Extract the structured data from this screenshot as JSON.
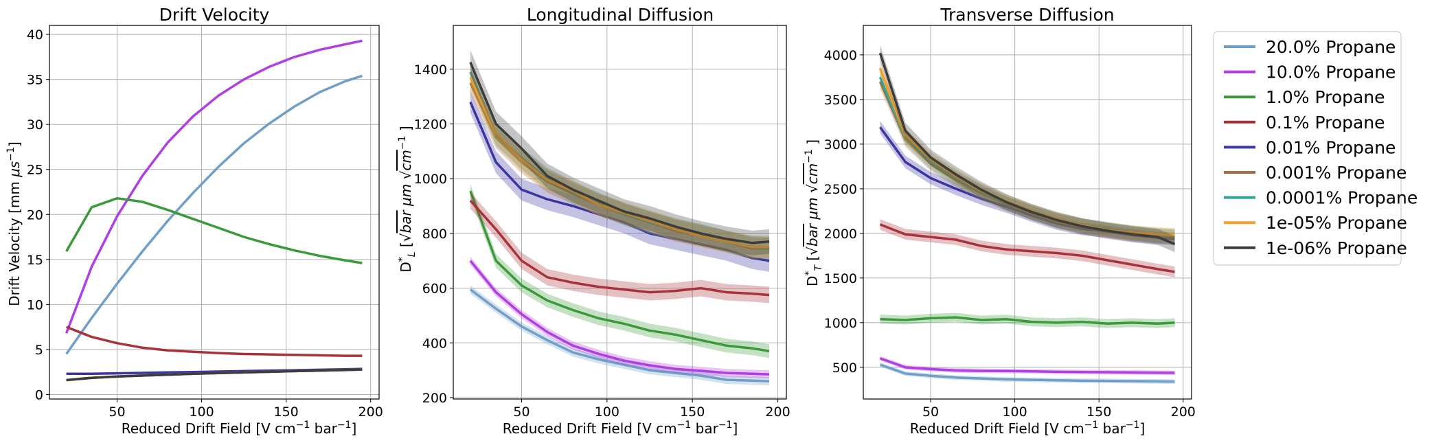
{
  "chart_data": [
    {
      "type": "line",
      "title": "Drift Velocity",
      "xlabel": "Reduced Drift Field [V cm⁻¹ bar⁻¹]",
      "ylabel": "Drift Velocity [mm μs⁻¹]",
      "xlim": [
        10,
        205
      ],
      "ylim": [
        -0.5,
        41
      ],
      "xticks": [
        50,
        100,
        150,
        200
      ],
      "yticks": [
        0,
        5,
        10,
        15,
        20,
        25,
        30,
        35,
        40
      ],
      "grid": true,
      "x": [
        20,
        35,
        50,
        65,
        80,
        95,
        110,
        125,
        140,
        155,
        170,
        185,
        195
      ],
      "series": [
        {
          "name": "20.0% Propane",
          "values": [
            4.5,
            8.5,
            12.3,
            15.9,
            19.3,
            22.4,
            25.3,
            27.9,
            30.1,
            32.0,
            33.6,
            34.8,
            35.4
          ]
        },
        {
          "name": "10.0% Propane",
          "values": [
            6.8,
            14.2,
            19.8,
            24.3,
            28.0,
            30.9,
            33.2,
            35.0,
            36.4,
            37.5,
            38.3,
            38.9,
            39.3
          ]
        },
        {
          "name": "1.0% Propane",
          "values": [
            15.9,
            20.8,
            21.8,
            21.4,
            20.5,
            19.5,
            18.5,
            17.5,
            16.7,
            16.0,
            15.4,
            14.9,
            14.6
          ]
        },
        {
          "name": "0.1% Propane",
          "values": [
            7.5,
            6.4,
            5.7,
            5.2,
            4.9,
            4.75,
            4.6,
            4.5,
            4.45,
            4.4,
            4.35,
            4.3,
            4.3
          ]
        },
        {
          "name": "0.01% Propane",
          "values": [
            2.3,
            2.3,
            2.35,
            2.4,
            2.45,
            2.5,
            2.55,
            2.6,
            2.65,
            2.7,
            2.75,
            2.8,
            2.85
          ]
        },
        {
          "name": "0.001% Propane",
          "values": [
            1.6,
            1.85,
            2.0,
            2.1,
            2.2,
            2.3,
            2.38,
            2.45,
            2.52,
            2.6,
            2.66,
            2.72,
            2.78
          ]
        },
        {
          "name": "0.0001% Propane",
          "values": [
            1.6,
            1.85,
            2.0,
            2.1,
            2.2,
            2.3,
            2.38,
            2.45,
            2.52,
            2.6,
            2.66,
            2.72,
            2.78
          ]
        },
        {
          "name": "1e-05% Propane",
          "values": [
            1.6,
            1.85,
            2.0,
            2.1,
            2.2,
            2.3,
            2.38,
            2.45,
            2.52,
            2.6,
            2.66,
            2.72,
            2.78
          ]
        },
        {
          "name": "1e-06% Propane",
          "values": [
            1.6,
            1.85,
            2.0,
            2.1,
            2.2,
            2.3,
            2.38,
            2.45,
            2.52,
            2.6,
            2.66,
            2.72,
            2.78
          ]
        }
      ]
    },
    {
      "type": "line",
      "title": "Longitudinal Diffusion",
      "xlabel": "Reduced Drift Field [V cm⁻¹ bar⁻¹]",
      "ylabel": "D*L [√bar μm √cm⁻¹]",
      "xlim": [
        10,
        205
      ],
      "ylim": [
        195,
        1560
      ],
      "xticks": [
        50,
        100,
        150,
        200
      ],
      "yticks": [
        200,
        400,
        600,
        800,
        1000,
        1200,
        1400
      ],
      "grid": true,
      "x": [
        20,
        35,
        50,
        65,
        80,
        95,
        110,
        125,
        140,
        155,
        170,
        185,
        195
      ],
      "series": [
        {
          "name": "20.0% Propane",
          "values": [
            595,
            525,
            460,
            410,
            365,
            340,
            320,
            300,
            290,
            280,
            265,
            262,
            260
          ],
          "band": 15
        },
        {
          "name": "10.0% Propane",
          "values": [
            700,
            585,
            505,
            440,
            390,
            360,
            335,
            318,
            305,
            298,
            290,
            287,
            285
          ],
          "band": 15
        },
        {
          "name": "1.0% Propane",
          "values": [
            955,
            700,
            610,
            555,
            520,
            490,
            470,
            445,
            430,
            410,
            390,
            380,
            370
          ],
          "band": 25
        },
        {
          "name": "0.1% Propane",
          "values": [
            920,
            815,
            700,
            640,
            620,
            605,
            595,
            585,
            590,
            600,
            585,
            580,
            575
          ],
          "band": 30
        },
        {
          "name": "0.01% Propane",
          "values": [
            1280,
            1060,
            960,
            925,
            900,
            870,
            840,
            800,
            780,
            760,
            740,
            710,
            700
          ],
          "band": 40
        },
        {
          "name": "0.001% Propane",
          "values": [
            1350,
            1150,
            1060,
            990,
            945,
            905,
            870,
            840,
            810,
            790,
            770,
            745,
            745
          ],
          "band": 40
        },
        {
          "name": "0.0001% Propane",
          "values": [
            1390,
            1160,
            1075,
            1000,
            950,
            910,
            870,
            840,
            815,
            795,
            770,
            750,
            745
          ],
          "band": 40
        },
        {
          "name": "1e-05% Propane",
          "values": [
            1370,
            1165,
            1070,
            995,
            955,
            905,
            875,
            845,
            815,
            790,
            770,
            750,
            750
          ],
          "band": 40
        },
        {
          "name": "1e-06% Propane",
          "values": [
            1425,
            1200,
            1110,
            1010,
            960,
            920,
            880,
            855,
            825,
            800,
            780,
            765,
            770
          ],
          "band": 45
        }
      ]
    },
    {
      "type": "line",
      "title": "Transverse Diffusion",
      "xlabel": "Reduced Drift Field [V cm⁻¹ bar⁻¹]",
      "ylabel": "D*T [√bar μm √cm⁻¹]",
      "xlim": [
        10,
        205
      ],
      "ylim": [
        145,
        4330
      ],
      "xticks": [
        50,
        100,
        150,
        200
      ],
      "yticks": [
        500,
        1000,
        1500,
        2000,
        2500,
        3000,
        3500,
        4000
      ],
      "grid": true,
      "x": [
        20,
        35,
        50,
        65,
        80,
        95,
        110,
        125,
        140,
        155,
        170,
        185,
        195
      ],
      "series": [
        {
          "name": "20.0% Propane",
          "values": [
            530,
            430,
            405,
            385,
            375,
            365,
            360,
            355,
            350,
            348,
            345,
            342,
            340
          ],
          "band": 25
        },
        {
          "name": "10.0% Propane",
          "values": [
            600,
            500,
            480,
            465,
            460,
            458,
            455,
            450,
            447,
            445,
            442,
            440,
            438
          ],
          "band": 25
        },
        {
          "name": "1.0% Propane",
          "values": [
            1040,
            1030,
            1050,
            1060,
            1030,
            1040,
            1010,
            1000,
            1010,
            990,
            1000,
            990,
            1000
          ],
          "band": 50
        },
        {
          "name": "0.1% Propane",
          "values": [
            2100,
            1990,
            1960,
            1930,
            1860,
            1820,
            1800,
            1780,
            1750,
            1700,
            1650,
            1600,
            1570
          ],
          "band": 60
        },
        {
          "name": "0.01% Propane",
          "values": [
            3190,
            2800,
            2620,
            2500,
            2390,
            2300,
            2200,
            2110,
            2050,
            2020,
            1980,
            1950,
            1940
          ],
          "band": 70
        },
        {
          "name": "0.001% Propane",
          "values": [
            3700,
            3050,
            2780,
            2600,
            2450,
            2330,
            2230,
            2140,
            2080,
            2040,
            2000,
            1970,
            1960
          ],
          "band": 80
        },
        {
          "name": "0.0001% Propane",
          "values": [
            3750,
            3080,
            2800,
            2620,
            2470,
            2340,
            2240,
            2150,
            2090,
            2050,
            2010,
            1980,
            1970
          ],
          "band": 80
        },
        {
          "name": "1e-05% Propane",
          "values": [
            3850,
            3100,
            2830,
            2640,
            2480,
            2360,
            2250,
            2160,
            2090,
            2040,
            2010,
            1990,
            1980
          ],
          "band": 80
        },
        {
          "name": "1e-06% Propane",
          "values": [
            4020,
            3150,
            2850,
            2660,
            2490,
            2350,
            2240,
            2150,
            2080,
            2030,
            1990,
            1960,
            1880
          ],
          "band": 90
        }
      ]
    }
  ],
  "legend": {
    "placement": "right",
    "entries": [
      {
        "label": "20.0% Propane",
        "color": "#6f9ec8"
      },
      {
        "label": "10.0% Propane",
        "color": "#b03ee0"
      },
      {
        "label": "1.0% Propane",
        "color": "#3a9a3a"
      },
      {
        "label": "0.1% Propane",
        "color": "#a8323a"
      },
      {
        "label": "0.01% Propane",
        "color": "#3a35a0"
      },
      {
        "label": "0.001% Propane",
        "color": "#a86a3e"
      },
      {
        "label": "0.0001% Propane",
        "color": "#30a29a"
      },
      {
        "label": "1e-05% Propane",
        "color": "#f0a030"
      },
      {
        "label": "1e-06% Propane",
        "color": "#3c3c3c"
      }
    ]
  },
  "ylabel_parts": {
    "p1": {
      "main": "Drift Velocity [mm ",
      "unit": "μs",
      "sup": "−1",
      "end": "]"
    },
    "p2": {
      "main": "D",
      "sub": "L",
      "sup": "*",
      "open": " [",
      "sqrt": "√",
      "bar": "bar",
      "um": " μm ",
      "cm": "cm",
      "cmsup": "−1",
      "close": " ]"
    },
    "p3": {
      "main": "D",
      "sub": "T",
      "sup": "*",
      "open": " [",
      "sqrt": "√",
      "bar": "bar",
      "um": " μm ",
      "cm": "cm",
      "cmsup": "−1",
      "close": " ]"
    }
  },
  "xlabel_parts": {
    "a": "Reduced Drift Field [V cm",
    "s1": "−1",
    "b": " bar",
    "s2": "−1",
    "c": "]"
  }
}
